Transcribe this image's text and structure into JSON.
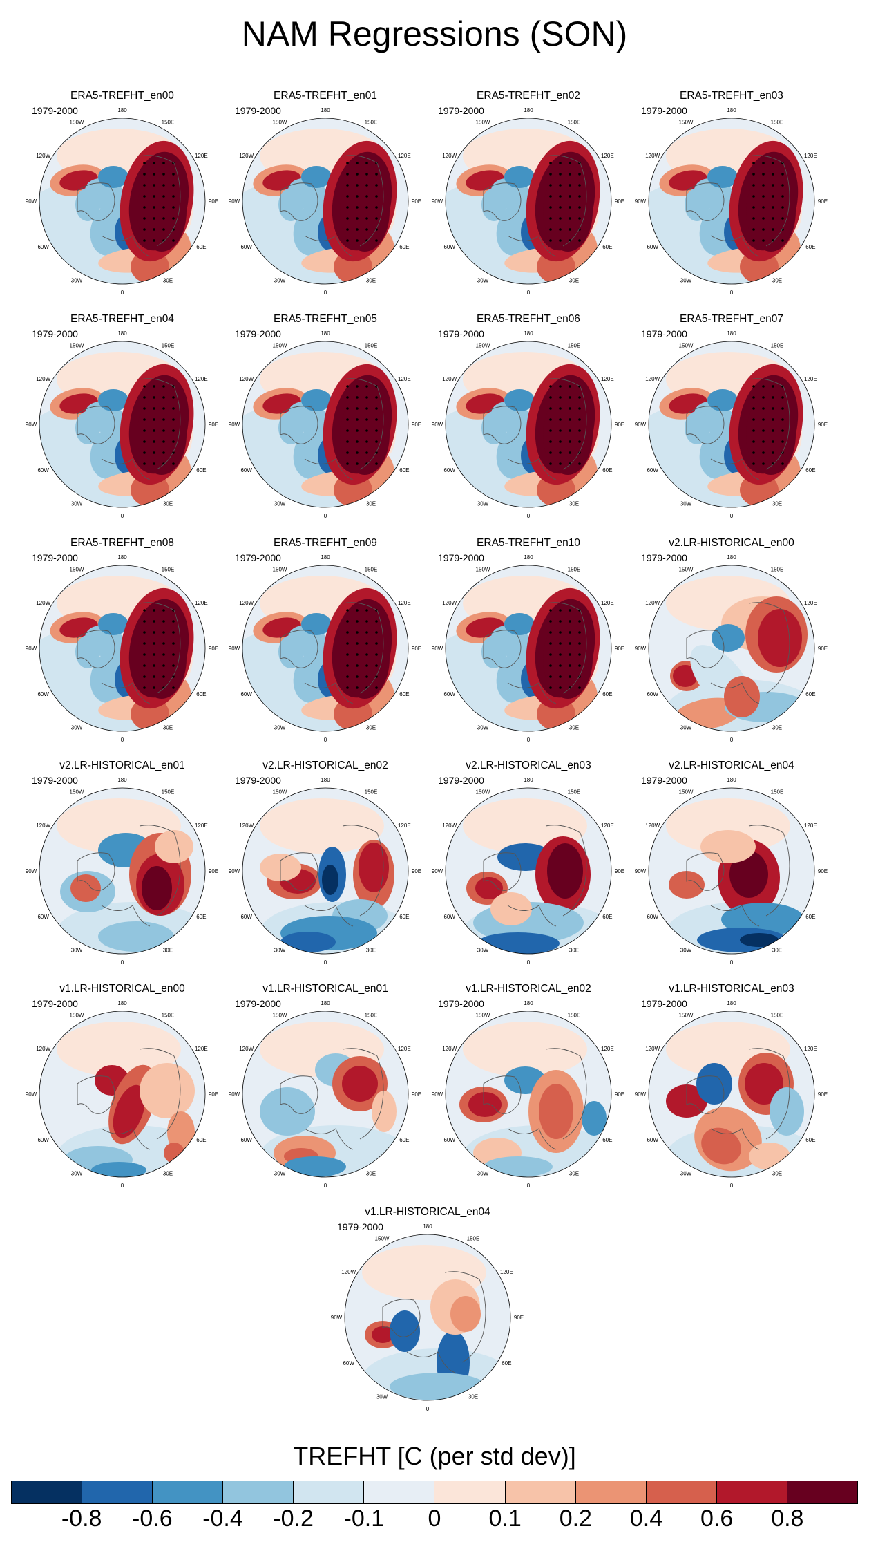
{
  "title": "NAM Regressions (SON)",
  "period": "1979-2000",
  "lon_labels": [
    "180",
    "150E",
    "120E",
    "90E",
    "60E",
    "30E",
    "0",
    "30W",
    "60W",
    "90W",
    "120W",
    "150W"
  ],
  "panels": [
    {
      "name": "ERA5-TREFHT_en00",
      "pattern": "era5"
    },
    {
      "name": "ERA5-TREFHT_en01",
      "pattern": "era5"
    },
    {
      "name": "ERA5-TREFHT_en02",
      "pattern": "era5"
    },
    {
      "name": "ERA5-TREFHT_en03",
      "pattern": "era5"
    },
    {
      "name": "ERA5-TREFHT_en04",
      "pattern": "era5"
    },
    {
      "name": "ERA5-TREFHT_en05",
      "pattern": "era5"
    },
    {
      "name": "ERA5-TREFHT_en06",
      "pattern": "era5"
    },
    {
      "name": "ERA5-TREFHT_en07",
      "pattern": "era5"
    },
    {
      "name": "ERA5-TREFHT_en08",
      "pattern": "era5"
    },
    {
      "name": "ERA5-TREFHT_en09",
      "pattern": "era5"
    },
    {
      "name": "ERA5-TREFHT_en10",
      "pattern": "era5"
    },
    {
      "name": "v2.LR-HISTORICAL_en00",
      "pattern": "v2a"
    },
    {
      "name": "v2.LR-HISTORICAL_en01",
      "pattern": "v2b"
    },
    {
      "name": "v2.LR-HISTORICAL_en02",
      "pattern": "v2c"
    },
    {
      "name": "v2.LR-HISTORICAL_en03",
      "pattern": "v2d"
    },
    {
      "name": "v2.LR-HISTORICAL_en04",
      "pattern": "v2e"
    },
    {
      "name": "v1.LR-HISTORICAL_en00",
      "pattern": "v1a"
    },
    {
      "name": "v1.LR-HISTORICAL_en01",
      "pattern": "v1b"
    },
    {
      "name": "v1.LR-HISTORICAL_en02",
      "pattern": "v1c"
    },
    {
      "name": "v1.LR-HISTORICAL_en03",
      "pattern": "v1d"
    },
    {
      "name": "v1.LR-HISTORICAL_en04",
      "pattern": "v1e"
    }
  ],
  "colorbar": {
    "title": "TREFHT [C (per std dev)]",
    "colors": [
      "#053061",
      "#2166ac",
      "#4393c3",
      "#92c5de",
      "#d1e5f0",
      "#e7eef5",
      "#fbe5d9",
      "#f7c3a9",
      "#eb9474",
      "#d6604d",
      "#b2182b",
      "#67001f"
    ],
    "labels": [
      "-0.8",
      "-0.6",
      "-0.4",
      "-0.2",
      "-0.1",
      "0",
      "0.1",
      "0.2",
      "0.4",
      "0.6",
      "0.8"
    ]
  }
}
